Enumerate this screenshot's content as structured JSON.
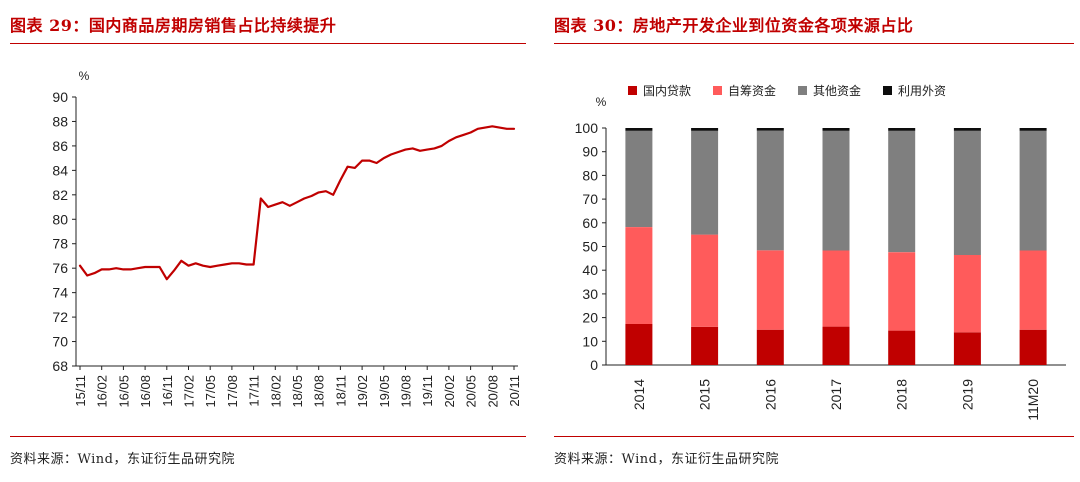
{
  "left": {
    "title": "图表 29：国内商品房期房销售占比持续提升",
    "source": "资料来源：Wind，东证衍生品研究院",
    "chart_data": {
      "type": "line",
      "ylabel": "%",
      "ylim": [
        68,
        90
      ],
      "yticks": [
        68,
        70,
        72,
        74,
        76,
        78,
        80,
        82,
        84,
        86,
        88,
        90
      ],
      "xticks": [
        "15/11",
        "16/02",
        "16/05",
        "16/08",
        "16/11",
        "17/02",
        "17/05",
        "17/08",
        "17/11",
        "18/02",
        "18/05",
        "18/08",
        "18/11",
        "19/02",
        "19/05",
        "19/08",
        "19/11",
        "20/02",
        "20/05",
        "20/08",
        "20/11"
      ],
      "color": "#c00000",
      "series": [
        {
          "x": [
            "15/11",
            "15/12",
            "16/01",
            "16/02",
            "16/03",
            "16/04",
            "16/05",
            "16/06",
            "16/07",
            "16/08",
            "16/09",
            "16/10",
            "16/11",
            "16/12",
            "17/01",
            "17/02",
            "17/03",
            "17/04",
            "17/05",
            "17/06",
            "17/07",
            "17/08",
            "17/09",
            "17/10",
            "17/11",
            "17/12",
            "18/01",
            "18/02",
            "18/03",
            "18/04",
            "18/05",
            "18/06",
            "18/07",
            "18/08",
            "18/09",
            "18/10",
            "18/11",
            "18/12",
            "19/01",
            "19/02",
            "19/03",
            "19/04",
            "19/05",
            "19/06",
            "19/07",
            "19/08",
            "19/09",
            "19/10",
            "19/11",
            "19/12",
            "20/01",
            "20/02",
            "20/03",
            "20/04",
            "20/05",
            "20/06",
            "20/07",
            "20/08",
            "20/09",
            "20/10",
            "20/11"
          ],
          "values": [
            76.2,
            75.4,
            75.6,
            75.9,
            75.9,
            76.0,
            75.9,
            75.9,
            76.0,
            76.1,
            76.1,
            76.1,
            75.1,
            75.8,
            76.6,
            76.2,
            76.4,
            76.2,
            76.1,
            76.2,
            76.3,
            76.4,
            76.4,
            76.3,
            76.3,
            81.7,
            81.0,
            81.2,
            81.4,
            81.1,
            81.4,
            81.7,
            81.9,
            82.2,
            82.3,
            82.0,
            83.2,
            84.3,
            84.2,
            84.8,
            84.8,
            84.6,
            85.0,
            85.3,
            85.5,
            85.7,
            85.8,
            85.6,
            85.7,
            85.8,
            86.0,
            86.4,
            86.7,
            86.9,
            87.1,
            87.4,
            87.5,
            87.6,
            87.5,
            87.4,
            87.4
          ]
        }
      ]
    }
  },
  "right": {
    "title": "图表 30：房地产开发企业到位资金各项来源占比",
    "source": "资料来源：Wind，东证衍生品研究院",
    "chart_data": {
      "type": "bar",
      "stacked": true,
      "ylabel": "%",
      "ylim": [
        0,
        100
      ],
      "yticks": [
        0,
        10,
        20,
        30,
        40,
        50,
        60,
        70,
        80,
        90,
        100
      ],
      "categories": [
        "2014",
        "2015",
        "2016",
        "2017",
        "2018",
        "2019",
        "11M20"
      ],
      "legend_position": "top",
      "series": [
        {
          "name": "国内贷款",
          "color": "#c00000",
          "values": [
            17.3,
            16.1,
            14.9,
            16.2,
            14.5,
            13.8,
            14.9
          ]
        },
        {
          "name": "自筹资金",
          "color": "#ff5b5b",
          "values": [
            40.9,
            38.9,
            33.5,
            32.1,
            33.1,
            32.6,
            33.4
          ]
        },
        {
          "name": "其他资金",
          "color": "#7f7f7f",
          "values": [
            40.6,
            43.8,
            50.5,
            50.5,
            51.2,
            52.4,
            50.5
          ]
        },
        {
          "name": "利用外资",
          "color": "#0d0d0d",
          "values": [
            1.2,
            1.2,
            1.1,
            1.2,
            1.2,
            1.2,
            1.2
          ]
        }
      ]
    }
  }
}
